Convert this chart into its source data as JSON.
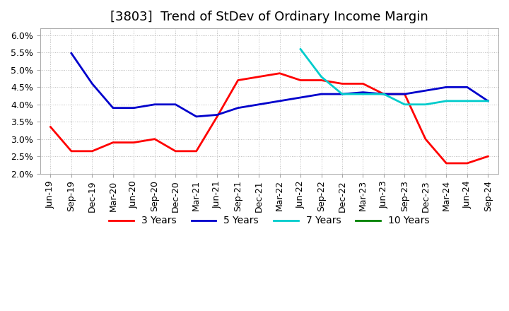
{
  "title": "[3803]  Trend of StDev of Ordinary Income Margin",
  "x_labels": [
    "Jun-19",
    "Sep-19",
    "Dec-19",
    "Mar-20",
    "Jun-20",
    "Sep-20",
    "Dec-20",
    "Mar-21",
    "Jun-21",
    "Sep-21",
    "Dec-21",
    "Mar-22",
    "Jun-22",
    "Sep-22",
    "Dec-22",
    "Mar-23",
    "Jun-23",
    "Sep-23",
    "Dec-23",
    "Mar-24",
    "Jun-24",
    "Sep-24"
  ],
  "ylim": [
    0.02,
    0.062
  ],
  "yticks": [
    0.02,
    0.025,
    0.03,
    0.035,
    0.04,
    0.045,
    0.05,
    0.055,
    0.06
  ],
  "series": {
    "3 Years": {
      "color": "#ff0000",
      "values": [
        0.0335,
        0.0265,
        0.0265,
        0.029,
        0.029,
        0.03,
        0.0265,
        0.0265,
        0.0365,
        0.047,
        0.048,
        0.049,
        0.047,
        0.047,
        0.046,
        0.046,
        0.043,
        0.043,
        0.03,
        0.023,
        0.023,
        0.025
      ]
    },
    "5 Years": {
      "color": "#0000cc",
      "values": [
        null,
        0.0548,
        0.046,
        0.039,
        0.039,
        0.04,
        0.04,
        0.0365,
        0.037,
        0.039,
        0.04,
        0.041,
        0.042,
        0.043,
        0.043,
        0.0435,
        0.043,
        0.043,
        0.044,
        0.045,
        0.045,
        0.041
      ]
    },
    "7 Years": {
      "color": "#00cccc",
      "values": [
        null,
        null,
        null,
        null,
        null,
        null,
        null,
        null,
        null,
        null,
        null,
        null,
        0.056,
        0.048,
        0.043,
        0.043,
        0.043,
        0.04,
        0.04,
        0.041,
        0.041,
        0.041
      ]
    },
    "10 Years": {
      "color": "#008000",
      "values": [
        null,
        null,
        null,
        null,
        null,
        null,
        null,
        null,
        null,
        null,
        null,
        null,
        null,
        null,
        null,
        null,
        null,
        null,
        null,
        null,
        null,
        null
      ]
    }
  },
  "background_color": "#ffffff",
  "plot_bg_color": "#ffffff",
  "grid_color": "#cccccc",
  "title_fontsize": 13,
  "tick_fontsize": 9,
  "legend_fontsize": 10
}
